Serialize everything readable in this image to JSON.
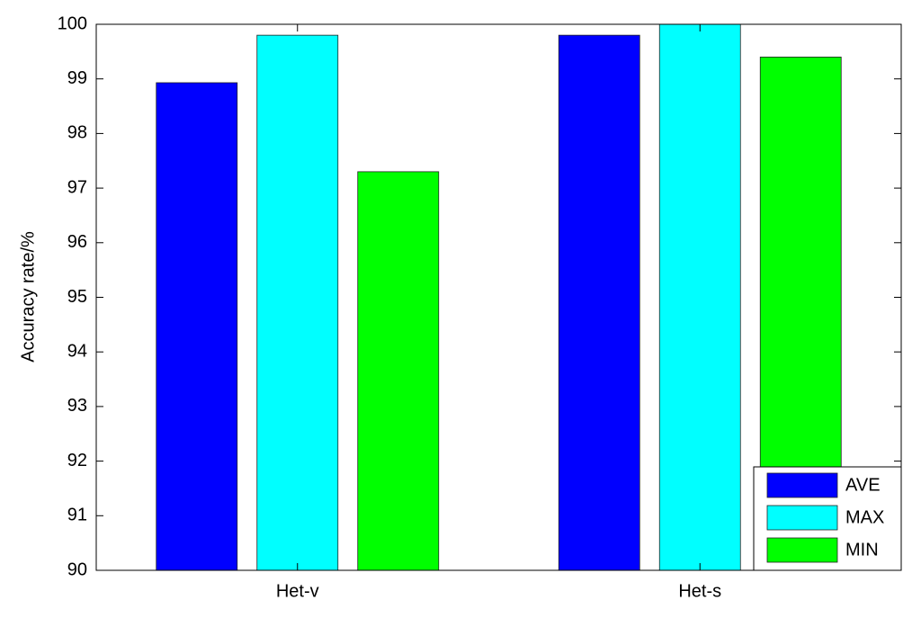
{
  "chart_data": {
    "type": "bar",
    "categories": [
      "Het-v",
      "Het-s"
    ],
    "series": [
      {
        "name": "AVE",
        "color": "#0000ff",
        "values": [
          98.93,
          99.8
        ]
      },
      {
        "name": "MAX",
        "color": "#00ffff",
        "values": [
          99.8,
          100
        ]
      },
      {
        "name": "MIN",
        "color": "#00ff00",
        "values": [
          97.3,
          99.4
        ]
      }
    ],
    "ylabel": "Accuracy rate/%",
    "ylim": [
      90,
      100
    ],
    "yticks": [
      90,
      91,
      92,
      93,
      94,
      95,
      96,
      97,
      98,
      99,
      100
    ],
    "legend": "lower right"
  }
}
